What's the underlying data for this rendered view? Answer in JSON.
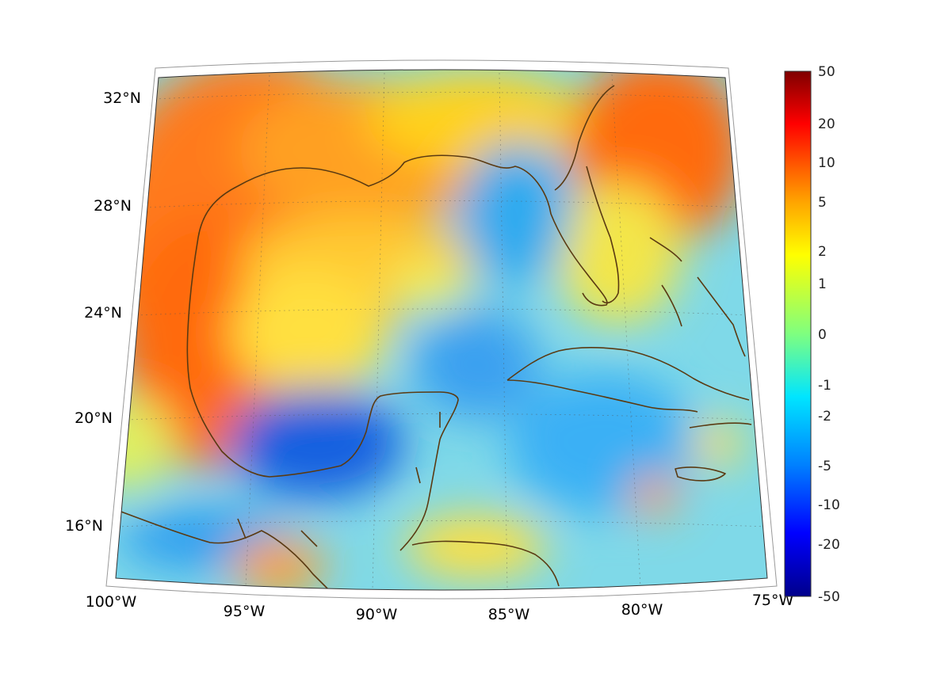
{
  "map": {
    "projection": "conic",
    "lon_range": [
      -100,
      -75
    ],
    "lat_range": [
      14,
      33
    ],
    "lat_labels": [
      "32°N",
      "28°N",
      "24°N",
      "20°N",
      "16°N"
    ],
    "lon_labels": [
      "100°W",
      "95°W",
      "90°W",
      "85°W",
      "80°W",
      "75°W"
    ],
    "coastline_color": "#5a3a12",
    "gridlines": true
  },
  "colorbar": {
    "colormap": "jet",
    "scale": "symmetric-log",
    "tick_labels": [
      "50",
      "20",
      "10",
      "5",
      "2",
      "1",
      "0",
      "-1",
      "-2",
      "-5",
      "-10",
      "-20",
      "-50"
    ],
    "range": [
      -50,
      50
    ]
  }
}
